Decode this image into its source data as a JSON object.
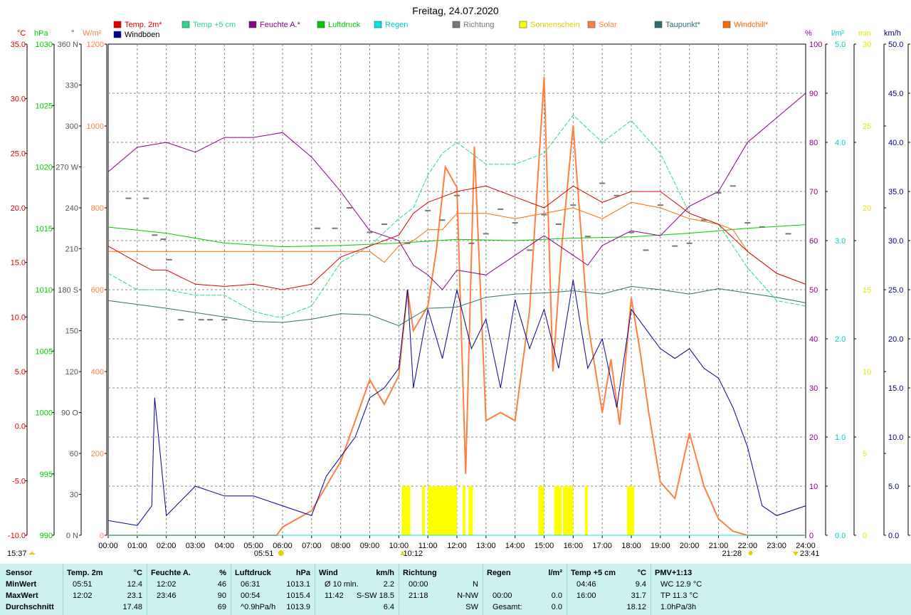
{
  "title": "Freitag, 24.07.2020",
  "legend": [
    {
      "name": "Temp. 2m*",
      "color": "#e00000"
    },
    {
      "name": "Temp +5 cm",
      "color": "#29d98f"
    },
    {
      "name": "Feuchte A.*",
      "color": "#8b008b"
    },
    {
      "name": "Luftdruck",
      "color": "#00cc00"
    },
    {
      "name": "Regen",
      "color": "#00e6e6"
    },
    {
      "name": "Richtung",
      "color": "#777777"
    },
    {
      "name": "Sonnenschein",
      "color": "#ffff00"
    },
    {
      "name": "Solar",
      "color": "#ff7f3f"
    },
    {
      "name": "Taupunkt*",
      "color": "#2e6e6e"
    },
    {
      "name": "Windchill*",
      "color": "#ff6a00"
    },
    {
      "name": "Windböen",
      "color": "#000099"
    }
  ],
  "axis_units": {
    "temp": "°C",
    "pressure": "hPa",
    "direction": "°",
    "solar": "W/m²",
    "humidity": "%",
    "rain": "l/m²",
    "sunshine": "min",
    "wind": "km/h"
  },
  "markers": {
    "sunrise": "05:51",
    "noon": "10:12",
    "sunset": "21:28",
    "moonset": "15:37",
    "moonrise": "23:41"
  },
  "chart_data": {
    "type": "line",
    "title": "Freitag, 24.07.2020",
    "x_ticks": [
      "00:00",
      "01:00",
      "02:00",
      "03:00",
      "04:00",
      "05:00",
      "06:00",
      "07:00",
      "08:00",
      "09:00",
      "10:00",
      "11:00",
      "12:00",
      "13:00",
      "14:00",
      "15:00",
      "16:00",
      "17:00",
      "18:00",
      "19:00",
      "20:00",
      "21:00",
      "22:00",
      "23:00",
      "24:00"
    ],
    "axes": {
      "temp": {
        "range": [
          -10,
          35
        ],
        "ticks": [
          "35.0",
          "30.0",
          "25.0",
          "20.0",
          "15.0",
          "10.0",
          "5.0",
          "0.0",
          "-5.0",
          "-10.0"
        ],
        "color": "#e00000"
      },
      "pressure": {
        "range": [
          990,
          1030
        ],
        "ticks": [
          "1030",
          "1025",
          "1020",
          "1015",
          "1010",
          "1005",
          "1000",
          "995",
          "990"
        ],
        "color": "#00cc00"
      },
      "direction": {
        "range": [
          0,
          360
        ],
        "ticks": [
          "360 N",
          "330",
          "300",
          "270 W",
          "240",
          "210",
          "180 S",
          "150",
          "120",
          "90 O",
          "60",
          "30",
          "0 N"
        ],
        "color": "#555555"
      },
      "solar": {
        "range": [
          0,
          1200
        ],
        "ticks": [
          "1200",
          "1000",
          "800",
          "600",
          "400",
          "200",
          "0"
        ],
        "color": "#ff7f3f"
      },
      "humidity": {
        "range": [
          0,
          100
        ],
        "ticks": [
          "100",
          "90",
          "80",
          "70",
          "60",
          "50",
          "40",
          "30",
          "20",
          "10",
          "0"
        ],
        "color": "#8b008b"
      },
      "rain": {
        "range": [
          0,
          5
        ],
        "ticks": [
          "5.0",
          "4.0",
          "3.0",
          "2.0",
          "1.0",
          "0.0"
        ],
        "color": "#00cccc"
      },
      "sunshine": {
        "range": [
          0,
          30
        ],
        "ticks": [
          "30",
          "25",
          "20",
          "15",
          "10",
          "5",
          "0"
        ],
        "color": "#e6e600"
      },
      "wind": {
        "range": [
          0,
          50
        ],
        "ticks": [
          "50.0",
          "45.0",
          "40.0",
          "35.0",
          "30.0",
          "25.0",
          "20.0",
          "15.0",
          "10.0",
          "5.0",
          "0.0"
        ],
        "color": "#000080"
      }
    },
    "series": [
      {
        "name": "Temp. 2m*",
        "axis": "temp",
        "color": "#e00000",
        "x": [
          0,
          1,
          1.5,
          2,
          3,
          4,
          5,
          6,
          7,
          8,
          9,
          10,
          10.5,
          11,
          12,
          13,
          14,
          15,
          16,
          17,
          18,
          19,
          20,
          21,
          22,
          23,
          24
        ],
        "y": [
          16.5,
          15,
          14.3,
          14.3,
          13,
          12.8,
          13,
          12.5,
          13,
          15.5,
          16.5,
          17.5,
          19.5,
          20.5,
          21.5,
          22,
          21,
          20,
          22,
          20.5,
          21.5,
          21.5,
          19.5,
          18.5,
          16,
          14,
          13
        ]
      },
      {
        "name": "Temp +5 cm",
        "axis": "temp",
        "color": "#29d98f",
        "x": [
          0,
          1,
          2,
          3,
          4,
          5,
          5.8,
          6,
          7,
          8,
          9,
          10,
          10.5,
          11,
          11.5,
          12,
          12.5,
          13,
          14,
          15,
          16,
          17,
          18,
          19,
          20,
          21,
          22,
          22.5,
          23,
          24
        ],
        "y": [
          14,
          12.5,
          12.5,
          12,
          12,
          10.5,
          10,
          10,
          11,
          15,
          16.5,
          19,
          20,
          23,
          25,
          26,
          25,
          24,
          24,
          25,
          28.5,
          26,
          28,
          25,
          19.5,
          18.5,
          14.5,
          13,
          11.5,
          11
        ]
      },
      {
        "name": "Feuchte A.*",
        "axis": "humidity",
        "color": "#8b008b",
        "x": [
          0,
          1,
          2,
          3,
          4,
          5,
          6,
          7,
          8,
          9,
          10,
          10.5,
          11,
          11.5,
          12,
          13,
          14,
          15,
          16,
          16.5,
          17,
          18,
          19,
          20,
          21,
          22,
          23,
          24
        ],
        "y": [
          74,
          79,
          80,
          78,
          81,
          81,
          82,
          77,
          70,
          62,
          60,
          55,
          53,
          50,
          54,
          53,
          57,
          61,
          57,
          55,
          59,
          62,
          61,
          67,
          70,
          80,
          85,
          90
        ]
      },
      {
        "name": "Luftdruck",
        "axis": "pressure",
        "color": "#00cc00",
        "x": [
          0,
          2,
          4,
          6,
          8,
          10,
          12,
          14,
          16,
          18,
          20,
          22,
          24
        ],
        "y": [
          1015.1,
          1014.6,
          1013.8,
          1013.5,
          1013.6,
          1013.8,
          1014.1,
          1014.0,
          1014.2,
          1014.3,
          1014.6,
          1015.0,
          1015.3
        ]
      },
      {
        "name": "Taupunkt*",
        "axis": "temp",
        "color": "#2e6e6e",
        "x": [
          0,
          2,
          4,
          5,
          6,
          7,
          8,
          9,
          10,
          11,
          12,
          13,
          14,
          15,
          16,
          17,
          18,
          19,
          20,
          21,
          22,
          23,
          24
        ],
        "y": [
          11.5,
          10.8,
          10.0,
          9.6,
          9.5,
          9.8,
          10.3,
          10.2,
          9.2,
          10.8,
          10.9,
          11.8,
          12.1,
          12.2,
          12.4,
          12.1,
          12.8,
          12.5,
          12.1,
          12.6,
          12.2,
          11.8,
          11.3
        ]
      },
      {
        "name": "Windchill*",
        "axis": "temp",
        "color": "#ff6a00",
        "x": [
          0,
          9,
          9.5,
          10,
          10.5,
          11,
          11.5,
          12,
          13,
          14,
          15,
          16,
          17,
          18,
          19,
          20,
          21,
          21.5,
          22,
          23,
          24
        ],
        "y": [
          16,
          16,
          15,
          16.5,
          17,
          18,
          18,
          19.5,
          19.5,
          19,
          19.5,
          20,
          19,
          20.5,
          20,
          19,
          18.5,
          18,
          16,
          14,
          13
        ]
      },
      {
        "name": "Solar",
        "axis": "solar",
        "color": "#ff7f3f",
        "x": [
          0,
          5.8,
          6,
          7,
          8,
          9,
          9.5,
          10,
          10.3,
          10.5,
          11,
          11.3,
          11.6,
          12,
          12.3,
          12.6,
          13,
          13.5,
          14,
          14.5,
          15,
          15.3,
          15.6,
          16,
          16.5,
          17,
          17.3,
          17.6,
          18,
          18.3,
          18.6,
          19,
          19.5,
          20,
          20.5,
          21,
          21.5,
          22,
          23,
          24
        ],
        "y": [
          0,
          0,
          20,
          60,
          180,
          380,
          320,
          390,
          600,
          500,
          560,
          700,
          900,
          850,
          150,
          950,
          280,
          300,
          280,
          550,
          1120,
          400,
          700,
          1000,
          520,
          300,
          430,
          270,
          580,
          450,
          300,
          130,
          90,
          250,
          120,
          40,
          10,
          0,
          0,
          0
        ]
      },
      {
        "name": "Windböen",
        "axis": "wind",
        "color": "#000099",
        "x": [
          0,
          1,
          1.5,
          1.6,
          2,
          3,
          4,
          5,
          6,
          7,
          7.5,
          8,
          8.5,
          9,
          9.5,
          10,
          10.3,
          10.5,
          11,
          11.5,
          12,
          12.5,
          13,
          13.5,
          14,
          14.5,
          15,
          15.5,
          16,
          16.5,
          17,
          17.5,
          18,
          18.5,
          19,
          19.5,
          20,
          20.5,
          21,
          21.5,
          22,
          22.5,
          23,
          24
        ],
        "y": [
          1.5,
          1,
          3,
          14,
          2,
          5,
          4,
          4,
          3,
          2,
          6,
          8,
          10,
          14,
          15,
          17,
          25,
          15,
          23,
          18,
          25,
          19,
          22,
          15,
          24,
          19,
          23,
          17,
          26,
          17,
          20,
          13,
          23,
          21,
          19,
          18,
          19,
          17,
          16,
          13,
          9,
          3,
          2,
          3
        ]
      }
    ],
    "scatter_series": [
      {
        "name": "Richtung",
        "axis": "direction",
        "color": "#777777",
        "x": [
          0.7,
          1.3,
          1.6,
          1.9,
          2.1,
          2.5,
          3.2,
          3.5,
          4,
          7.2,
          7.8,
          8.3,
          9,
          9.5,
          10.3,
          11,
          11.5,
          12,
          12.5,
          13,
          13.5,
          14,
          14.5,
          15,
          15.5,
          16,
          16.5,
          17,
          17.5,
          18,
          18.5,
          19,
          19.5,
          20,
          20.5,
          21,
          21.5,
          22,
          22.5,
          23.4
        ],
        "y": [
          247,
          247,
          220,
          217,
          202,
          158,
          158,
          158,
          158,
          225,
          225,
          240,
          222,
          228,
          214,
          238,
          231,
          249,
          214,
          221,
          239,
          229,
          209,
          235,
          228,
          242,
          219,
          258,
          249,
          222,
          209,
          242,
          212,
          214,
          231,
          251,
          256,
          229,
          226,
          221
        ]
      }
    ],
    "sunshine_bars": {
      "axis": "sunshine",
      "color": "#ffff00",
      "intervals": [
        [
          10.1,
          10.4
        ],
        [
          10.8,
          10.9
        ],
        [
          11.0,
          12.0
        ],
        [
          12.2,
          12.3
        ],
        [
          12.4,
          12.55
        ],
        [
          14.8,
          15.0
        ],
        [
          15.35,
          15.6
        ],
        [
          15.65,
          16.0
        ],
        [
          16.4,
          16.5
        ],
        [
          17.85,
          18.1
        ]
      ],
      "value": 3
    },
    "rain": {
      "axis": "rain",
      "color": "#00e6e6",
      "values": [
        0
      ]
    }
  },
  "table": {
    "columns": [
      {
        "header": "Sensor",
        "rows": [
          {
            "label": "MinWert"
          },
          {
            "label": "MaxWert"
          },
          {
            "label": "Durchschnitt"
          }
        ]
      },
      {
        "header": "Temp. 2m",
        "unit": "°C",
        "rows": [
          {
            "time": "05:51",
            "value": "12.4"
          },
          {
            "time": "12:02",
            "value": "23.1"
          },
          {
            "time": "",
            "value": "17.48"
          }
        ]
      },
      {
        "header": "Feuchte A.",
        "unit": "%",
        "rows": [
          {
            "time": "12:02",
            "value": "46"
          },
          {
            "time": "23:46",
            "value": "90"
          },
          {
            "time": "",
            "value": "69"
          }
        ]
      },
      {
        "header": "Luftdruck",
        "unit": "hPa",
        "rows": [
          {
            "time": "06:31",
            "value": "1013.1"
          },
          {
            "time": "00:54",
            "value": "1015.4"
          },
          {
            "time": "^0.9hPa/h",
            "value": "1013.9"
          }
        ]
      },
      {
        "header": "Wind",
        "unit": "km/h",
        "rows": [
          {
            "time": "Ø 10 min.",
            "value": "2.2"
          },
          {
            "time": "11:42",
            "value": "S-SW 18.5"
          },
          {
            "time": "",
            "value": "6.4"
          }
        ]
      },
      {
        "header": "Richtung",
        "unit": "",
        "rows": [
          {
            "time": "00:00",
            "value": "N"
          },
          {
            "time": "21:18",
            "value": "N-NW"
          },
          {
            "time": "",
            "value": "SW"
          }
        ]
      },
      {
        "header": "Regen",
        "unit": "l/m²",
        "rows": [
          {
            "time": "",
            "value": ""
          },
          {
            "time": "00:00",
            "value": "0.0"
          },
          {
            "time": "Gesamt:",
            "value": "0.0"
          }
        ]
      },
      {
        "header": "Temp +5 cm",
        "unit": "°C",
        "rows": [
          {
            "time": "04:46",
            "value": "9.4"
          },
          {
            "time": "16:00",
            "value": "31.7"
          },
          {
            "time": "",
            "value": "18.12"
          }
        ]
      },
      {
        "header": "PMV+1:13",
        "unit": "",
        "rows": [
          {
            "time": "WC 12.9 °C",
            "value": ""
          },
          {
            "time": "TP 11.3 °C",
            "value": ""
          },
          {
            "time": "1.0hPa/3h",
            "value": ""
          }
        ]
      }
    ]
  }
}
